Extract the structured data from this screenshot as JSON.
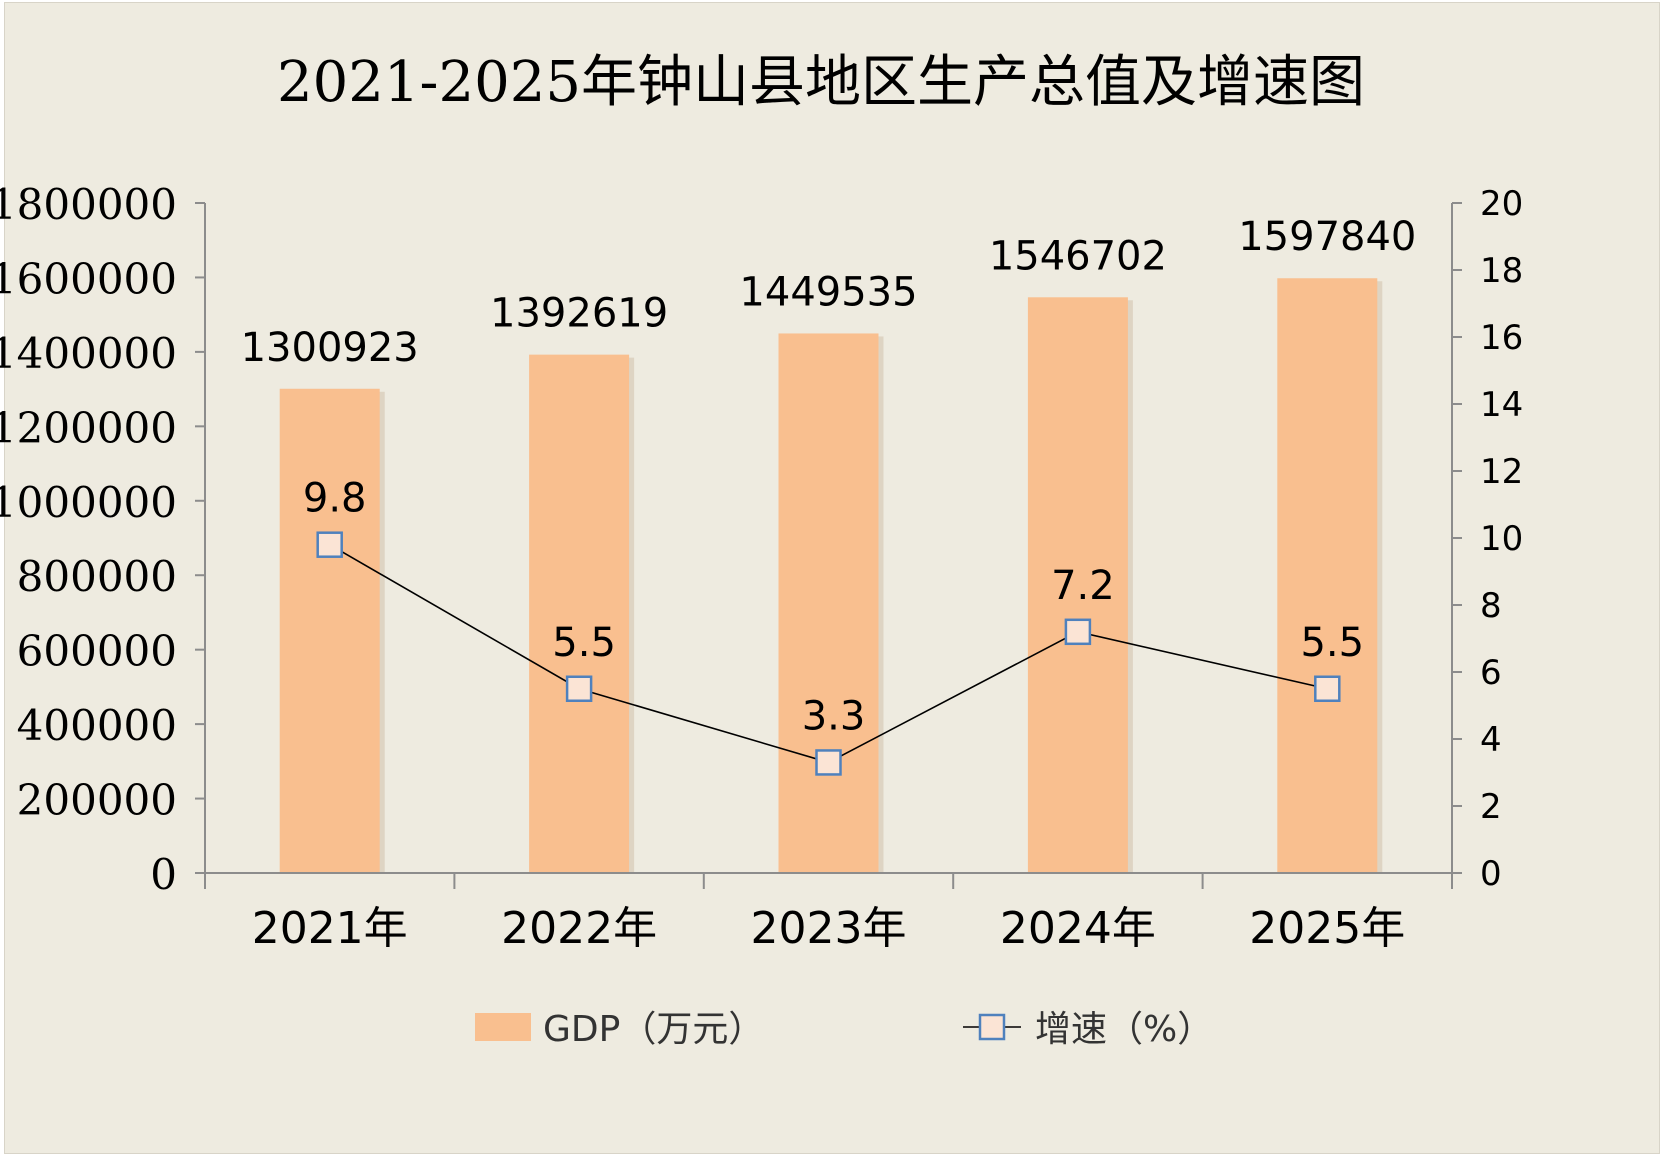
{
  "chart_data": {
    "type": "bar",
    "title": "2021-2025年钟山县地区生产总值及增速图",
    "categories": [
      "2021年",
      "2022年",
      "2023年",
      "2024年",
      "2025年"
    ],
    "series": [
      {
        "name": "GDP（万元）",
        "type": "bar",
        "axis": "left",
        "color": "#f9bf8f",
        "values": [
          1300923,
          1392619,
          1449535,
          1546702,
          1597840
        ]
      },
      {
        "name": "增速（%）",
        "type": "line",
        "axis": "right",
        "color": "#000000",
        "marker": "square",
        "marker_fill": "#fbe4d5",
        "marker_stroke": "#4f81bd",
        "values": [
          9.8,
          5.5,
          3.3,
          7.2,
          5.5
        ]
      }
    ],
    "y_left": {
      "range": [
        0,
        1800000
      ],
      "ticks": [
        0,
        200000,
        400000,
        600000,
        800000,
        1000000,
        1200000,
        1400000,
        1600000,
        1800000
      ]
    },
    "y_right": {
      "range": [
        0,
        20
      ],
      "ticks": [
        0,
        2,
        4,
        6,
        8,
        10,
        12,
        14,
        16,
        18,
        20
      ]
    },
    "grid": false,
    "legend_position": "bottom",
    "background": "#eeebe0"
  }
}
